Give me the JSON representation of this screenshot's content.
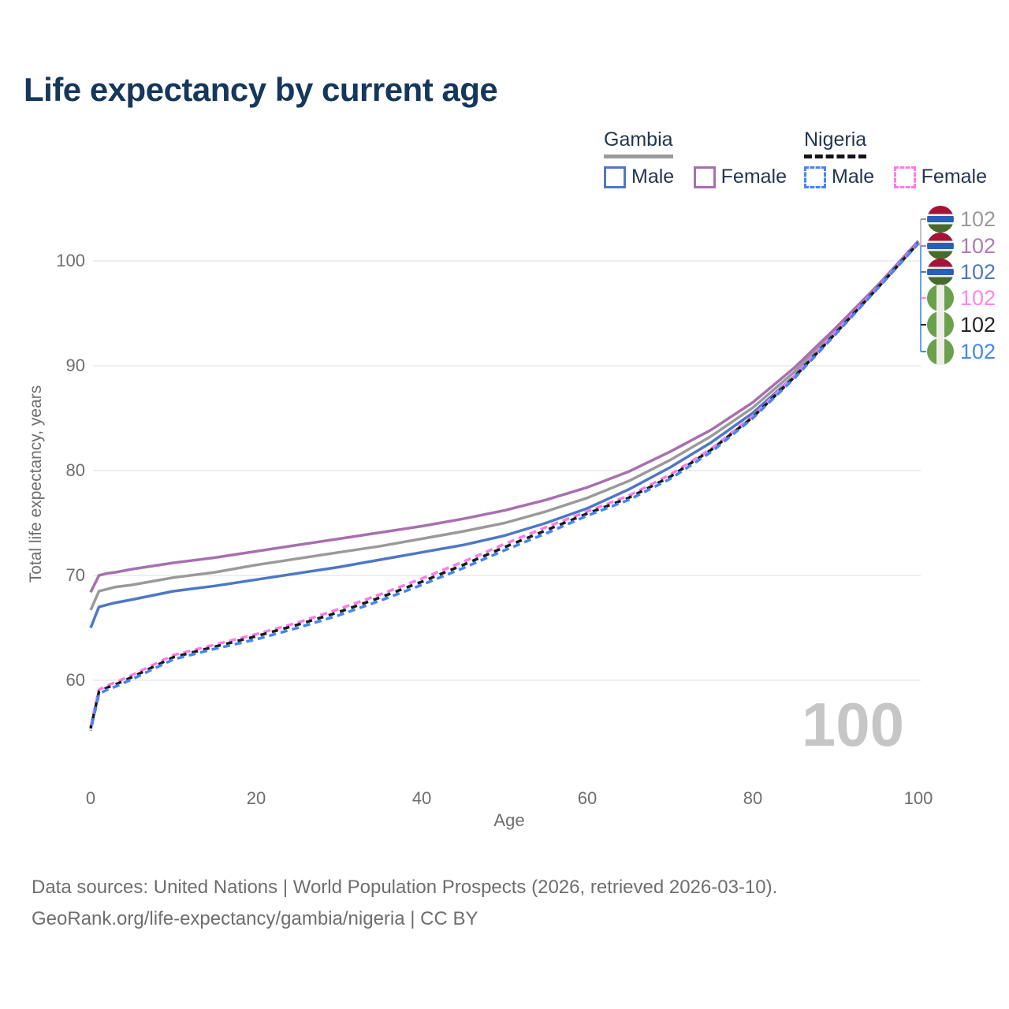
{
  "title": "Life expectancy by current age",
  "watermark": "100",
  "legend": {
    "groups": [
      {
        "country": "Gambia",
        "line_style": "solid",
        "underline_color": "#9a9a9a",
        "items": [
          {
            "label": "Male",
            "color": "#4d78c4"
          },
          {
            "label": "Female",
            "color": "#a86fb0"
          }
        ]
      },
      {
        "country": "Nigeria",
        "line_style": "dashed",
        "underline_color": "#151515",
        "items": [
          {
            "label": "Male",
            "color": "#4486f4"
          },
          {
            "label": "Female",
            "color": "#ff7be8"
          }
        ]
      }
    ]
  },
  "end_labels": [
    {
      "value": "102",
      "flag": "gambia",
      "color": "#9a9a9a"
    },
    {
      "value": "102",
      "flag": "gambia",
      "color": "#b07ab8"
    },
    {
      "value": "102",
      "flag": "gambia",
      "color": "#4d78c4"
    },
    {
      "value": "102",
      "flag": "nigeria",
      "color": "#ff85ea"
    },
    {
      "value": "102",
      "flag": "nigeria",
      "color": "#262626"
    },
    {
      "value": "102",
      "flag": "nigeria",
      "color": "#4486f4"
    }
  ],
  "axes": {
    "x_title": "Age",
    "y_title": "Total life expectancy, years"
  },
  "footer": {
    "line1": "Data sources: United Nations | World Population Prospects (2026, retrieved 2026-03-10).",
    "line2": "GeoRank.org/life-expectancy/gambia/nigeria | CC BY"
  },
  "chart_data": {
    "type": "line",
    "title": "Life expectancy by current age",
    "xlabel": "Age",
    "ylabel": "Total life expectancy, years",
    "xlim": [
      0,
      100
    ],
    "ylim": [
      55,
      103
    ],
    "x_ticks": [
      0,
      20,
      40,
      60,
      80,
      100
    ],
    "y_ticks": [
      60,
      70,
      80,
      90,
      100
    ],
    "grid": "horizontal",
    "legend_position": "top-right",
    "ages": [
      0,
      1,
      2,
      3,
      5,
      10,
      15,
      20,
      25,
      30,
      35,
      40,
      45,
      50,
      55,
      60,
      65,
      70,
      75,
      80,
      85,
      90,
      95,
      100
    ],
    "series": [
      {
        "name": "Gambia — All",
        "country": "Gambia",
        "sex": "all",
        "style": "solid",
        "color": "#9a9a9a",
        "values": [
          66.7,
          68.5,
          68.7,
          68.9,
          69.1,
          69.8,
          70.3,
          71.0,
          71.6,
          72.2,
          72.8,
          73.5,
          74.2,
          75.0,
          76.1,
          77.4,
          79.0,
          81.0,
          83.3,
          86.0,
          89.4,
          93.4,
          97.5,
          101.85
        ]
      },
      {
        "name": "Gambia — Female",
        "country": "Gambia",
        "sex": "female",
        "style": "solid",
        "color": "#a86fb0",
        "values": [
          68.4,
          70.0,
          70.2,
          70.3,
          70.6,
          71.2,
          71.7,
          72.3,
          72.9,
          73.5,
          74.1,
          74.7,
          75.4,
          76.2,
          77.2,
          78.4,
          79.9,
          81.8,
          83.9,
          86.5,
          89.8,
          93.6,
          97.6,
          101.9
        ]
      },
      {
        "name": "Gambia — Male",
        "country": "Gambia",
        "sex": "male",
        "style": "solid",
        "color": "#4d78c4",
        "values": [
          65.0,
          67.0,
          67.2,
          67.4,
          67.7,
          68.5,
          69.0,
          69.6,
          70.2,
          70.8,
          71.5,
          72.2,
          72.9,
          73.8,
          75.0,
          76.4,
          78.2,
          80.3,
          82.7,
          85.5,
          89.0,
          93.2,
          97.4,
          101.8
        ]
      },
      {
        "name": "Nigeria — Female",
        "country": "Nigeria",
        "sex": "female",
        "style": "dashed",
        "color": "#ff7be8",
        "values": [
          55.6,
          59.1,
          59.5,
          59.8,
          60.5,
          62.4,
          63.4,
          64.4,
          65.5,
          66.8,
          68.2,
          69.7,
          71.3,
          73.0,
          74.6,
          76.1,
          77.6,
          79.6,
          82.1,
          85.2,
          89.0,
          93.2,
          97.4,
          101.75
        ]
      },
      {
        "name": "Nigeria — All",
        "country": "Nigeria",
        "sex": "all",
        "style": "dashed",
        "color": "#1a1a1a",
        "values": [
          55.4,
          58.9,
          59.3,
          59.6,
          60.3,
          62.2,
          63.2,
          64.2,
          65.3,
          66.5,
          67.9,
          69.4,
          71.0,
          72.7,
          74.3,
          75.9,
          77.4,
          79.4,
          82.0,
          85.1,
          88.9,
          93.1,
          97.35,
          101.7
        ]
      },
      {
        "name": "Nigeria — Male",
        "country": "Nigeria",
        "sex": "male",
        "style": "dashed",
        "color": "#4486f4",
        "values": [
          55.2,
          58.7,
          59.1,
          59.4,
          60.1,
          62.0,
          63.0,
          63.9,
          65.0,
          66.2,
          67.6,
          69.1,
          70.7,
          72.4,
          74.0,
          75.7,
          77.2,
          79.2,
          81.8,
          85.0,
          88.8,
          93.0,
          97.3,
          101.65
        ]
      }
    ],
    "end_value_label": "102"
  }
}
